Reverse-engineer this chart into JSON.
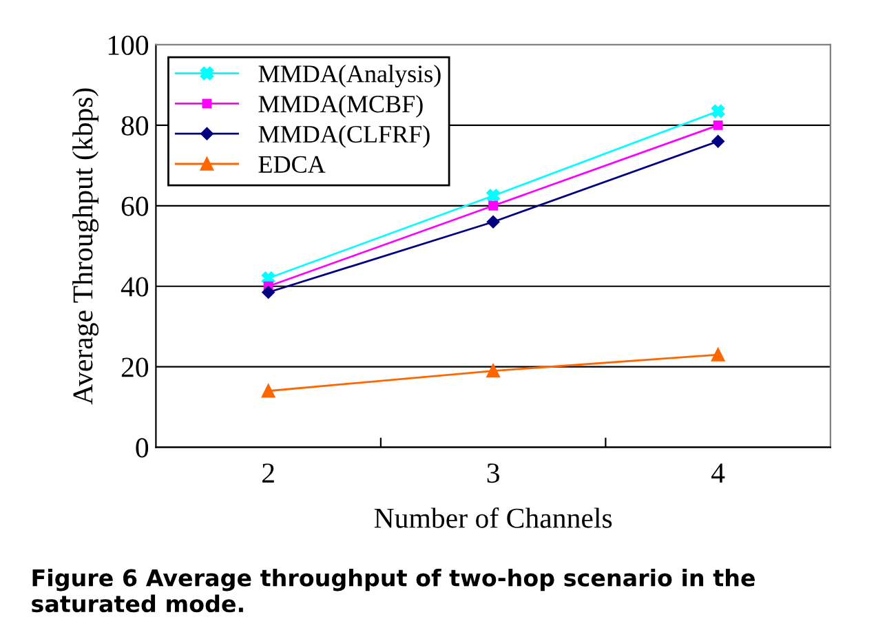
{
  "chart_data": {
    "type": "line",
    "xlabel": "Number of Channels",
    "ylabel": "Average Throughput (kbps)",
    "x": [
      2,
      3,
      4
    ],
    "xlim": [
      1.5,
      4.5
    ],
    "xticks": [
      2,
      3,
      4,
      {
        "value": 2.5,
        "label": null
      },
      {
        "value": 3.5,
        "label": null
      }
    ],
    "series": [
      {
        "name": "MMDA(Analysis)",
        "color": "#00ffff",
        "marker": "cross",
        "values": [
          42,
          62.5,
          83.5
        ]
      },
      {
        "name": "MMDA(MCBF)",
        "color": "#ff00ff",
        "marker": "square",
        "values": [
          40,
          60,
          80
        ]
      },
      {
        "name": "MMDA(CLFRF)",
        "color": "#000080",
        "marker": "diamond",
        "values": [
          38.5,
          56,
          76
        ]
      },
      {
        "name": "EDCA",
        "color": "#ff6600",
        "marker": "triangle",
        "values": [
          14,
          19,
          23
        ]
      }
    ],
    "ylim": [
      0,
      100
    ],
    "yticks": [
      0,
      20,
      40,
      60,
      80,
      100
    ],
    "grid": "y",
    "legend": "top left",
    "annotations": [
      "Figure 6 Average throughput of two-hop scenario in the saturated mode."
    ]
  }
}
